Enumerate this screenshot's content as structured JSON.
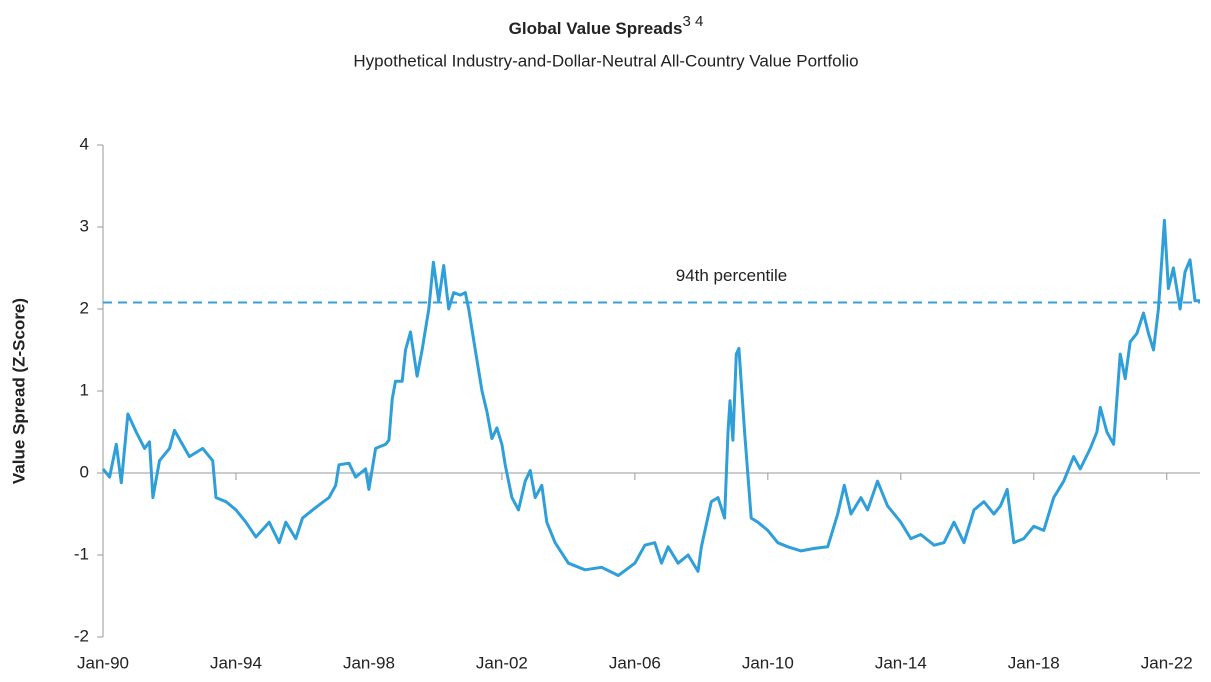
{
  "chart_data": {
    "type": "line",
    "title": "Global Value Spreads",
    "title_superscript": "3 4",
    "subtitle": "Hypothetical Industry-and-Dollar-Neutral All-Country Value Portfolio",
    "y_label": "Value Spread (Z-Score)",
    "color": "#2e9fd9",
    "reference_line": {
      "value": 2.08,
      "label": "94th percentile",
      "color": "#3a9fd6"
    },
    "xlim": [
      1990,
      2023
    ],
    "xticks": [
      {
        "value": 1990,
        "label": "Jan-90"
      },
      {
        "value": 1994,
        "label": "Jan-94"
      },
      {
        "value": 1998,
        "label": "Jan-98"
      },
      {
        "value": 2002,
        "label": "Jan-02"
      },
      {
        "value": 2006,
        "label": "Jan-06"
      },
      {
        "value": 2010,
        "label": "Jan-10"
      },
      {
        "value": 2014,
        "label": "Jan-14"
      },
      {
        "value": 2018,
        "label": "Jan-18"
      },
      {
        "value": 2022,
        "label": "Jan-22"
      }
    ],
    "ylim": [
      -2,
      4
    ],
    "yticks": [
      -2,
      -1,
      0,
      1,
      2,
      3,
      4
    ],
    "x": [
      1990.0,
      1990.2,
      1990.4,
      1990.55,
      1990.75,
      1991.0,
      1991.25,
      1991.4,
      1991.5,
      1991.7,
      1992.0,
      1992.15,
      1992.6,
      1993.0,
      1993.3,
      1993.4,
      1993.7,
      1994.0,
      1994.3,
      1994.6,
      1995.0,
      1995.3,
      1995.5,
      1995.8,
      1996.0,
      1996.4,
      1996.8,
      1997.0,
      1997.1,
      1997.4,
      1997.6,
      1997.9,
      1998.0,
      1998.2,
      1998.5,
      1998.6,
      1998.7,
      1998.8,
      1999.0,
      1999.1,
      1999.25,
      1999.45,
      1999.6,
      1999.8,
      1999.94,
      2000.1,
      2000.25,
      2000.4,
      2000.55,
      2000.75,
      2000.9,
      2001.0,
      2001.2,
      2001.4,
      2001.55,
      2001.7,
      2001.85,
      2002.0,
      2002.1,
      2002.3,
      2002.5,
      2002.7,
      2002.85,
      2003.0,
      2003.2,
      2003.35,
      2003.6,
      2004.0,
      2004.5,
      2005.0,
      2005.5,
      2006.0,
      2006.3,
      2006.6,
      2006.8,
      2007.0,
      2007.3,
      2007.6,
      2007.9,
      2008.0,
      2008.3,
      2008.5,
      2008.7,
      2008.8,
      2008.86,
      2008.95,
      2009.05,
      2009.13,
      2009.3,
      2009.5,
      2009.7,
      2010.0,
      2010.3,
      2010.6,
      2011.0,
      2011.4,
      2011.8,
      2012.1,
      2012.3,
      2012.5,
      2012.8,
      2013.0,
      2013.3,
      2013.6,
      2014.0,
      2014.3,
      2014.6,
      2015.0,
      2015.3,
      2015.6,
      2015.9,
      2016.2,
      2016.5,
      2016.8,
      2017.0,
      2017.2,
      2017.4,
      2017.7,
      2018.0,
      2018.3,
      2018.6,
      2018.9,
      2019.2,
      2019.4,
      2019.7,
      2019.9,
      2020.0,
      2020.2,
      2020.4,
      2020.6,
      2020.75,
      2020.9,
      2021.1,
      2021.3,
      2021.45,
      2021.6,
      2021.75,
      2021.85,
      2021.93,
      2022.05,
      2022.2,
      2022.4,
      2022.55,
      2022.7,
      2022.85,
      2023.0
    ],
    "values": [
      0.05,
      -0.05,
      0.35,
      -0.12,
      0.72,
      0.5,
      0.3,
      0.38,
      -0.3,
      0.15,
      0.3,
      0.52,
      0.2,
      0.3,
      0.15,
      -0.3,
      -0.35,
      -0.45,
      -0.6,
      -0.78,
      -0.6,
      -0.85,
      -0.6,
      -0.8,
      -0.55,
      -0.42,
      -0.3,
      -0.15,
      0.1,
      0.12,
      -0.05,
      0.05,
      -0.2,
      0.3,
      0.35,
      0.4,
      0.9,
      1.12,
      1.12,
      1.5,
      1.72,
      1.18,
      1.5,
      2.0,
      2.57,
      2.1,
      2.53,
      2.0,
      2.2,
      2.17,
      2.2,
      2.0,
      1.5,
      1.0,
      0.75,
      0.42,
      0.55,
      0.35,
      0.1,
      -0.3,
      -0.45,
      -0.1,
      0.03,
      -0.3,
      -0.15,
      -0.6,
      -0.85,
      -1.1,
      -1.18,
      -1.15,
      -1.25,
      -1.1,
      -0.88,
      -0.85,
      -1.1,
      -0.9,
      -1.1,
      -1.0,
      -1.2,
      -0.9,
      -0.35,
      -0.3,
      -0.55,
      0.5,
      0.88,
      0.4,
      1.45,
      1.52,
      0.5,
      -0.55,
      -0.6,
      -0.7,
      -0.85,
      -0.9,
      -0.95,
      -0.92,
      -0.9,
      -0.5,
      -0.15,
      -0.5,
      -0.3,
      -0.45,
      -0.1,
      -0.4,
      -0.6,
      -0.8,
      -0.75,
      -0.88,
      -0.85,
      -0.6,
      -0.85,
      -0.45,
      -0.35,
      -0.5,
      -0.4,
      -0.2,
      -0.85,
      -0.8,
      -0.65,
      -0.7,
      -0.3,
      -0.1,
      0.2,
      0.05,
      0.3,
      0.5,
      0.8,
      0.5,
      0.35,
      1.45,
      1.15,
      1.6,
      1.7,
      1.95,
      1.7,
      1.5,
      2.0,
      2.6,
      3.08,
      2.25,
      2.5,
      2.0,
      2.45,
      2.6,
      2.1,
      2.1
    ]
  }
}
